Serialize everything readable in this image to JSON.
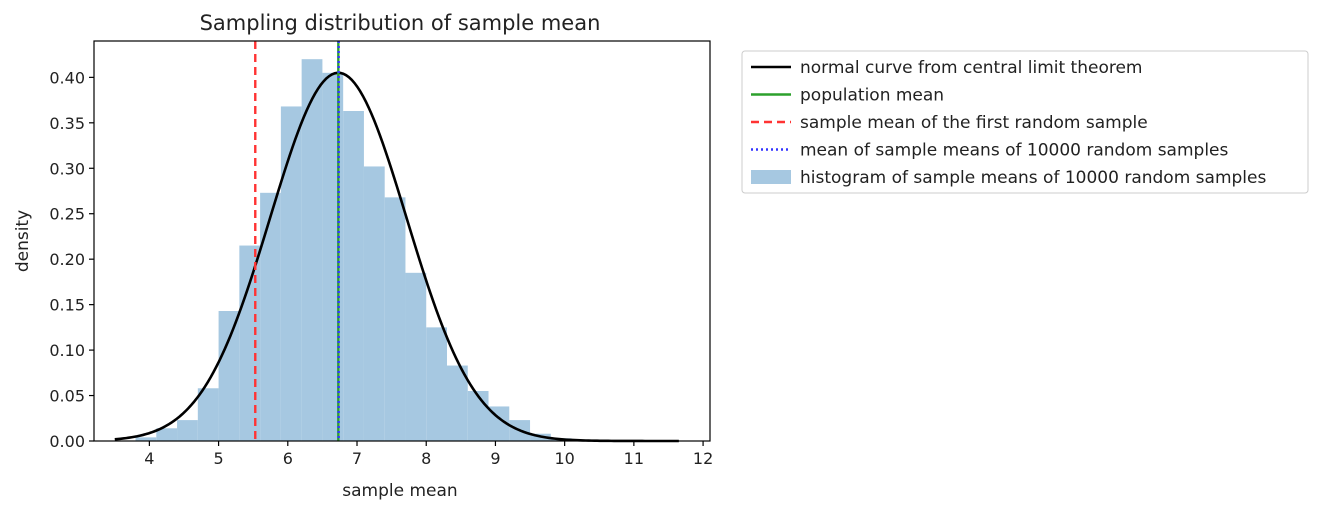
{
  "chart_data": {
    "type": "bar",
    "title": "Sampling distribution of sample mean",
    "xlabel": "sample mean",
    "ylabel": "density",
    "xlim": [
      3.2,
      12.1
    ],
    "ylim": [
      0,
      0.44
    ],
    "xticks": [
      4,
      5,
      6,
      7,
      8,
      9,
      10,
      11,
      12
    ],
    "yticks": [
      "0.00",
      "0.05",
      "0.10",
      "0.15",
      "0.20",
      "0.25",
      "0.30",
      "0.35",
      "0.40"
    ],
    "grid": false,
    "legend_placement": "outside right, top",
    "histogram": {
      "name": "histogram of sample means of 10000 random samples",
      "color": "#a6c8e1",
      "bin_edges": [
        3.8,
        4.1,
        4.4,
        4.7,
        5.0,
        5.3,
        5.6,
        5.9,
        6.2,
        6.5,
        6.8,
        7.1,
        7.4,
        7.7,
        8.0,
        8.3,
        8.6,
        8.9,
        9.2,
        9.5,
        9.8,
        10.1,
        10.4
      ],
      "values": [
        0.004,
        0.014,
        0.023,
        0.058,
        0.143,
        0.215,
        0.273,
        0.368,
        0.42,
        0.405,
        0.363,
        0.302,
        0.268,
        0.185,
        0.125,
        0.083,
        0.055,
        0.038,
        0.023,
        0.008,
        0.003,
        0.001
      ]
    },
    "normal_curve": {
      "name": "normal curve from central limit theorem",
      "color": "#000000",
      "mean": 6.73,
      "sd": 0.985,
      "x_range": [
        3.5,
        11.65
      ]
    },
    "vlines": [
      {
        "name": "population mean",
        "x": 6.73,
        "color": "#2ca02c",
        "style": "solid"
      },
      {
        "name": "sample mean of the first random sample",
        "x": 5.53,
        "color": "#ff3333",
        "style": "dashed"
      },
      {
        "name": "mean of sample means of 10000 random samples",
        "x": 6.735,
        "color": "#3333ff",
        "style": "dotted"
      }
    ],
    "legend": [
      {
        "label": "normal curve from central limit theorem",
        "kind": "line",
        "color": "#000000",
        "style": "solid"
      },
      {
        "label": "population mean",
        "kind": "line",
        "color": "#2ca02c",
        "style": "solid"
      },
      {
        "label": "sample mean of the first random sample",
        "kind": "line",
        "color": "#ff3333",
        "style": "dashed"
      },
      {
        "label": "mean of sample means of 10000 random samples",
        "kind": "line",
        "color": "#3333ff",
        "style": "dotted"
      },
      {
        "label": "histogram of sample means of 10000 random samples",
        "kind": "patch",
        "color": "#a6c8e1",
        "style": "solid"
      }
    ]
  }
}
